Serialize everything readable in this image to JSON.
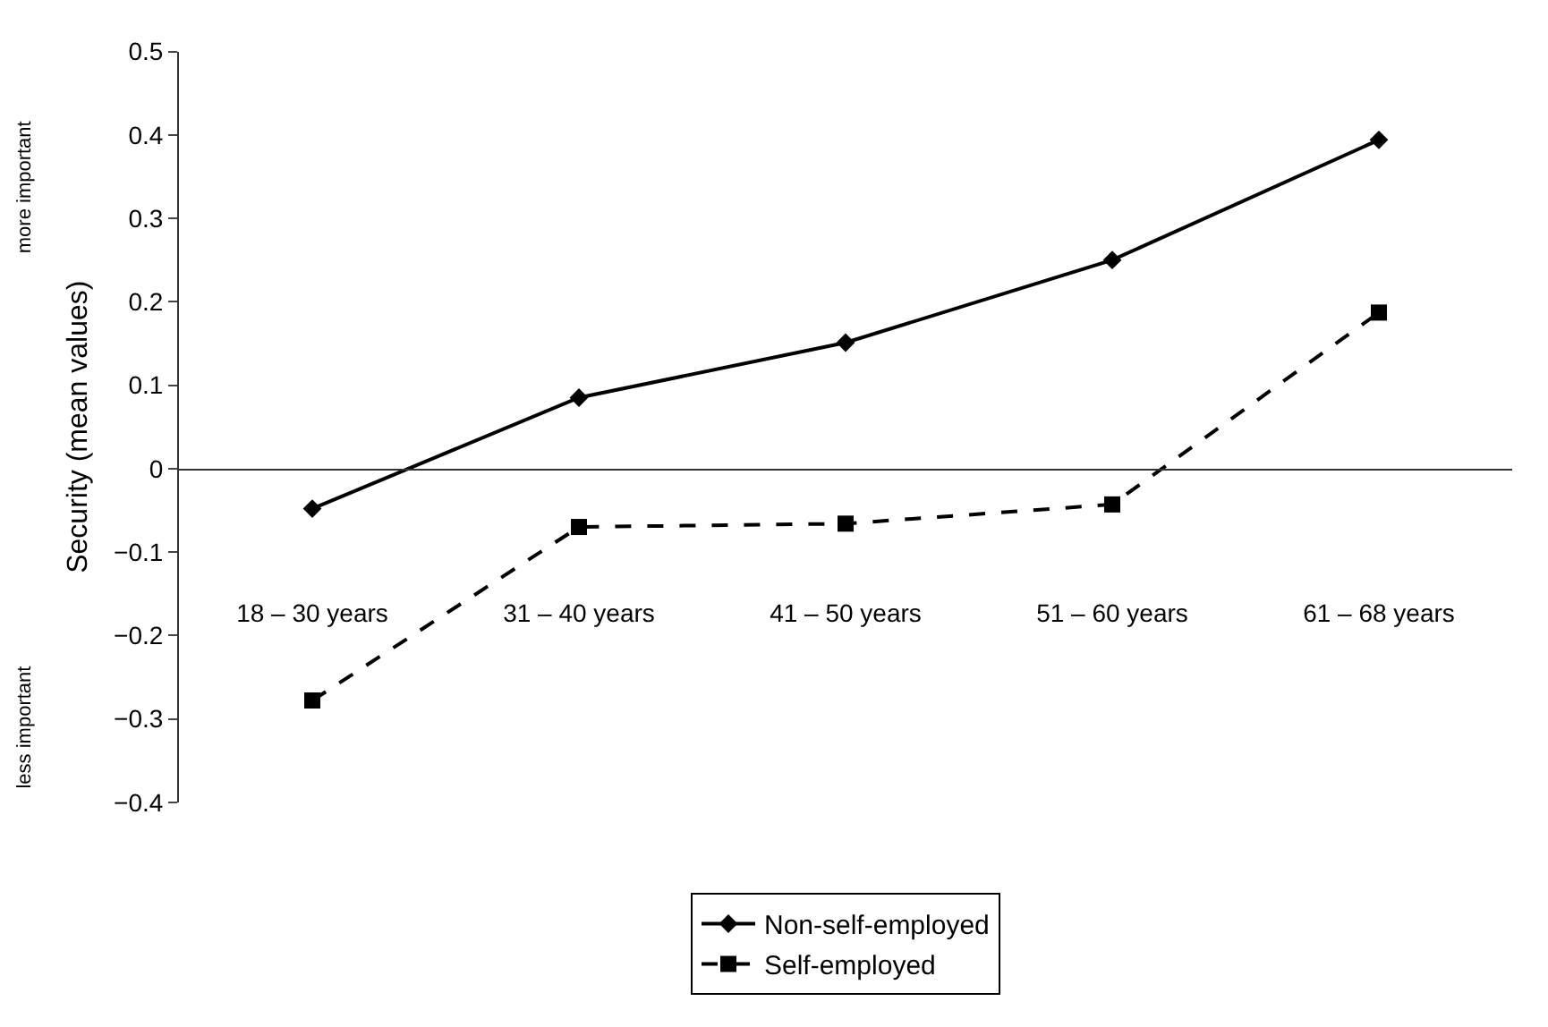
{
  "chart_data": {
    "type": "line",
    "ylabel": "Security (mean values)",
    "categories": [
      "18 – 30 years",
      "31 – 40 years",
      "41 – 50 years",
      "51 – 60 years",
      "61 – 68 years"
    ],
    "series": [
      {
        "name": "Non-self-employed",
        "color": "#000000",
        "values": [
          -0.048,
          0.085,
          0.151,
          0.25,
          0.394
        ],
        "marker": "diamond",
        "line_style": "solid"
      },
      {
        "name": "Self-employed",
        "color": "#000000",
        "values": [
          -0.278,
          -0.07,
          -0.066,
          -0.043,
          0.187
        ],
        "marker": "square",
        "line_style": "dashed"
      }
    ],
    "ylim": [
      -0.4,
      0.5
    ],
    "yticks": [
      {
        "value": -0.4,
        "label": "−0.4"
      },
      {
        "value": -0.3,
        "label": "−0.3"
      },
      {
        "value": -0.2,
        "label": "−0.2"
      },
      {
        "value": -0.1,
        "label": "−0.1"
      },
      0,
      0.1,
      0.2,
      0.3,
      0.4,
      0.5
    ],
    "annotations": [
      "more important",
      "less important"
    ],
    "legend": "bottom"
  }
}
